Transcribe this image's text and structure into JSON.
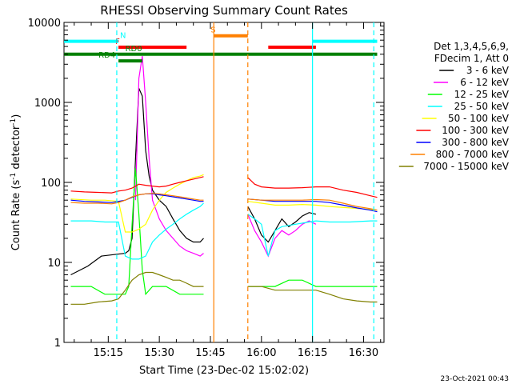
{
  "chart_data": {
    "type": "line",
    "title": "RHESSI Observing Summary Count Rates",
    "xlabel": "Start Time (23-Dec-02 15:02:02)",
    "ylabel_main": "Count Rate (s",
    "ylabel_sup1": "-1",
    "ylabel_mid": " detector",
    "ylabel_sup2": "-1",
    "ylabel_end": ")",
    "y_scale": "log",
    "ylim": [
      1,
      10000
    ],
    "xlim_minutes_after_1500": [
      2,
      42
    ],
    "x_ticks": [
      {
        "minute": 15,
        "label": "15:15"
      },
      {
        "minute": 30,
        "label": "15:30"
      },
      {
        "minute": 45,
        "label": "15:45"
      },
      {
        "minute": 60,
        "label": "16:00"
      },
      {
        "minute": 75,
        "label": "16:15"
      },
      {
        "minute": 90,
        "label": "16:30"
      }
    ],
    "y_ticks": [
      {
        "value": 1,
        "label": "1"
      },
      {
        "value": 10,
        "label": "10"
      },
      {
        "value": 100,
        "label": "100"
      },
      {
        "value": 1000,
        "label": "1000"
      },
      {
        "value": 10000,
        "label": "10000"
      }
    ],
    "legend_header": [
      "Det 1,3,4,5,6,9,",
      "FDecim 1, Att 0"
    ],
    "legend_placement": "right",
    "series": [
      {
        "name": "3 - 6 keV",
        "color": "#000000",
        "points": [
          [
            4,
            7
          ],
          [
            9,
            9
          ],
          [
            13,
            12
          ],
          [
            20,
            13
          ],
          [
            21,
            14
          ],
          [
            22,
            20
          ],
          [
            23,
            200
          ],
          [
            24,
            1500
          ],
          [
            25,
            1200
          ],
          [
            26,
            250
          ],
          [
            27,
            120
          ],
          [
            28,
            80
          ],
          [
            30,
            60
          ],
          [
            32,
            50
          ],
          [
            34,
            35
          ],
          [
            36,
            25
          ],
          [
            38,
            20
          ],
          [
            40,
            18
          ],
          [
            42,
            18
          ],
          [
            43,
            20
          ],
          null,
          [
            56,
            50
          ],
          [
            58,
            35
          ],
          [
            60,
            22
          ],
          [
            62,
            18
          ],
          [
            64,
            25
          ],
          [
            66,
            35
          ],
          [
            68,
            28
          ],
          [
            70,
            32
          ],
          [
            72,
            38
          ],
          [
            74,
            42
          ],
          [
            76,
            40
          ]
        ]
      },
      {
        "name": "6 - 12 keV",
        "color": "#ff00ff",
        "points": [
          [
            23,
            60
          ],
          [
            24,
            2000
          ],
          [
            25,
            3800
          ],
          [
            26,
            1000
          ],
          [
            27,
            200
          ],
          [
            28,
            60
          ],
          [
            30,
            35
          ],
          [
            32,
            25
          ],
          [
            34,
            20
          ],
          [
            36,
            16
          ],
          [
            38,
            14
          ],
          [
            40,
            13
          ],
          [
            42,
            12
          ],
          [
            43,
            13
          ],
          null,
          [
            56,
            40
          ],
          [
            58,
            25
          ],
          [
            60,
            18
          ],
          [
            62,
            12
          ],
          [
            64,
            20
          ],
          [
            66,
            25
          ],
          [
            68,
            22
          ],
          [
            70,
            25
          ],
          [
            72,
            30
          ],
          [
            74,
            33
          ],
          [
            76,
            30
          ]
        ]
      },
      {
        "name": "12 - 25 keV",
        "color": "#00ff00",
        "points": [
          [
            4,
            5
          ],
          [
            10,
            5
          ],
          [
            14,
            4
          ],
          [
            18,
            4
          ],
          [
            20,
            4
          ],
          [
            21,
            5
          ],
          [
            22,
            30
          ],
          [
            23,
            150
          ],
          [
            24,
            40
          ],
          [
            25,
            8
          ],
          [
            26,
            4
          ],
          [
            28,
            5
          ],
          [
            32,
            5
          ],
          [
            36,
            4
          ],
          [
            40,
            4
          ],
          [
            43,
            4
          ],
          null,
          [
            56,
            5
          ],
          [
            60,
            5
          ],
          [
            64,
            5
          ],
          [
            68,
            6
          ],
          [
            72,
            6
          ],
          [
            76,
            5
          ],
          [
            80,
            5
          ],
          [
            86,
            5
          ],
          [
            92,
            5
          ],
          [
            94,
            5
          ]
        ]
      },
      {
        "name": "25 - 50 keV",
        "color": "#00ffff",
        "points": [
          [
            4,
            33
          ],
          [
            10,
            33
          ],
          [
            14,
            32
          ],
          [
            18,
            32
          ],
          [
            20,
            12
          ],
          [
            22,
            11
          ],
          [
            24,
            11
          ],
          [
            26,
            12
          ],
          [
            28,
            18
          ],
          [
            30,
            22
          ],
          [
            32,
            26
          ],
          [
            34,
            30
          ],
          [
            36,
            35
          ],
          [
            38,
            40
          ],
          [
            40,
            45
          ],
          [
            42,
            50
          ],
          [
            43,
            55
          ],
          null,
          [
            56,
            40
          ],
          [
            58,
            35
          ],
          [
            60,
            30
          ],
          [
            62,
            12
          ],
          [
            64,
            25
          ],
          [
            66,
            28
          ],
          [
            70,
            30
          ],
          [
            74,
            32
          ],
          [
            76,
            33
          ],
          [
            80,
            32
          ],
          [
            86,
            32
          ],
          [
            92,
            33
          ],
          [
            94,
            33
          ]
        ]
      },
      {
        "name": "50 - 100 keV",
        "color": "#ffff00",
        "points": [
          [
            4,
            62
          ],
          [
            10,
            60
          ],
          [
            14,
            60
          ],
          [
            18,
            58
          ],
          [
            20,
            24
          ],
          [
            22,
            24
          ],
          [
            24,
            26
          ],
          [
            26,
            30
          ],
          [
            28,
            45
          ],
          [
            30,
            60
          ],
          [
            32,
            75
          ],
          [
            34,
            85
          ],
          [
            36,
            95
          ],
          [
            38,
            105
          ],
          [
            40,
            115
          ],
          [
            42,
            120
          ],
          [
            43,
            125
          ],
          null,
          [
            56,
            58
          ],
          [
            60,
            55
          ],
          [
            64,
            52
          ],
          [
            68,
            52
          ],
          [
            72,
            53
          ],
          [
            76,
            52
          ],
          [
            80,
            50
          ],
          [
            86,
            48
          ],
          [
            92,
            46
          ],
          [
            94,
            45
          ]
        ]
      },
      {
        "name": "100 - 300 keV",
        "color": "#ff0000",
        "points": [
          [
            4,
            78
          ],
          [
            8,
            76
          ],
          [
            12,
            75
          ],
          [
            16,
            74
          ],
          [
            18,
            78
          ],
          [
            20,
            80
          ],
          [
            22,
            85
          ],
          [
            24,
            95
          ],
          [
            26,
            92
          ],
          [
            28,
            90
          ],
          [
            30,
            88
          ],
          [
            32,
            90
          ],
          [
            34,
            95
          ],
          [
            36,
            100
          ],
          [
            38,
            105
          ],
          [
            40,
            110
          ],
          [
            42,
            115
          ],
          [
            43,
            118
          ],
          null,
          [
            56,
            115
          ],
          [
            58,
            95
          ],
          [
            60,
            88
          ],
          [
            64,
            85
          ],
          [
            68,
            85
          ],
          [
            72,
            86
          ],
          [
            76,
            88
          ],
          [
            80,
            88
          ],
          [
            84,
            80
          ],
          [
            88,
            75
          ],
          [
            92,
            68
          ],
          [
            94,
            65
          ]
        ]
      },
      {
        "name": "300 - 800 keV",
        "color": "#0000ff",
        "points": [
          [
            4,
            60
          ],
          [
            8,
            58
          ],
          [
            12,
            57
          ],
          [
            16,
            56
          ],
          [
            18,
            58
          ],
          [
            20,
            60
          ],
          [
            22,
            65
          ],
          [
            24,
            70
          ],
          [
            26,
            72
          ],
          [
            28,
            72
          ],
          [
            30,
            70
          ],
          [
            32,
            68
          ],
          [
            34,
            66
          ],
          [
            36,
            64
          ],
          [
            38,
            62
          ],
          [
            40,
            60
          ],
          [
            42,
            58
          ],
          [
            43,
            58
          ],
          null,
          [
            56,
            62
          ],
          [
            60,
            60
          ],
          [
            64,
            58
          ],
          [
            68,
            58
          ],
          [
            72,
            58
          ],
          [
            76,
            58
          ],
          [
            80,
            56
          ],
          [
            84,
            52
          ],
          [
            88,
            48
          ],
          [
            92,
            45
          ],
          [
            94,
            43
          ]
        ]
      },
      {
        "name": "800 - 7000 keV",
        "color": "#ff8000",
        "points": [
          [
            4,
            56
          ],
          [
            8,
            55
          ],
          [
            12,
            55
          ],
          [
            16,
            54
          ],
          [
            18,
            56
          ],
          [
            20,
            60
          ],
          [
            22,
            66
          ],
          [
            24,
            70
          ],
          [
            26,
            72
          ],
          [
            28,
            73
          ],
          [
            30,
            72
          ],
          [
            32,
            70
          ],
          [
            34,
            68
          ],
          [
            36,
            66
          ],
          [
            38,
            64
          ],
          [
            40,
            62
          ],
          [
            42,
            60
          ],
          [
            43,
            60
          ],
          null,
          [
            56,
            62
          ],
          [
            60,
            60
          ],
          [
            64,
            60
          ],
          [
            68,
            60
          ],
          [
            72,
            60
          ],
          [
            76,
            61
          ],
          [
            80,
            60
          ],
          [
            84,
            55
          ],
          [
            88,
            50
          ],
          [
            92,
            47
          ],
          [
            94,
            45
          ]
        ]
      },
      {
        "name": "7000 - 15000 keV",
        "color": "#808000",
        "points": [
          [
            4,
            3
          ],
          [
            8,
            3
          ],
          [
            12,
            3.2
          ],
          [
            16,
            3.3
          ],
          [
            18,
            3.5
          ],
          [
            20,
            4.5
          ],
          [
            22,
            6
          ],
          [
            24,
            7
          ],
          [
            26,
            7.5
          ],
          [
            28,
            7.5
          ],
          [
            30,
            7
          ],
          [
            32,
            6.5
          ],
          [
            34,
            6
          ],
          [
            36,
            6
          ],
          [
            38,
            5.5
          ],
          [
            40,
            5
          ],
          [
            42,
            5
          ],
          [
            43,
            5
          ],
          null,
          [
            56,
            5
          ],
          [
            60,
            5
          ],
          [
            64,
            4.5
          ],
          [
            68,
            4.5
          ],
          [
            72,
            4.5
          ],
          [
            76,
            4.5
          ],
          [
            80,
            4
          ],
          [
            84,
            3.5
          ],
          [
            88,
            3.3
          ],
          [
            92,
            3.2
          ],
          [
            94,
            3.2
          ]
        ]
      }
    ],
    "flag_bars": [
      {
        "label": "N",
        "color": "#00ffff",
        "y": 5800,
        "segments": [
          [
            2,
            18
          ],
          [
            75,
            94
          ]
        ]
      },
      {
        "label": "F",
        "color": "#ff0000",
        "y": 4900,
        "segments": [
          [
            18,
            38
          ],
          [
            62,
            76
          ]
        ]
      },
      {
        "label": "S",
        "color": "#ff8000",
        "y": 6800,
        "segments": [
          [
            46,
            56
          ]
        ]
      },
      {
        "label": "RD0",
        "color": "#008000",
        "y": 4000,
        "segments": [
          [
            2,
            94
          ]
        ]
      },
      {
        "label": "RD4",
        "color": "#008000",
        "y": 3300,
        "segments": [
          [
            18,
            25
          ]
        ]
      }
    ],
    "annotations": {
      "timestamp": "23-Oct-2021 00:43"
    },
    "vertical_markers": [
      {
        "minute": 17.5,
        "color": "#00ffff",
        "style": "dashed"
      },
      {
        "minute": 46,
        "color": "#ff8000",
        "style": "solid"
      },
      {
        "minute": 56,
        "color": "#ff8000",
        "style": "dashed"
      },
      {
        "minute": 75,
        "color": "#00ffff",
        "style": "solid"
      },
      {
        "minute": 93,
        "color": "#00ffff",
        "style": "dashed"
      }
    ]
  }
}
